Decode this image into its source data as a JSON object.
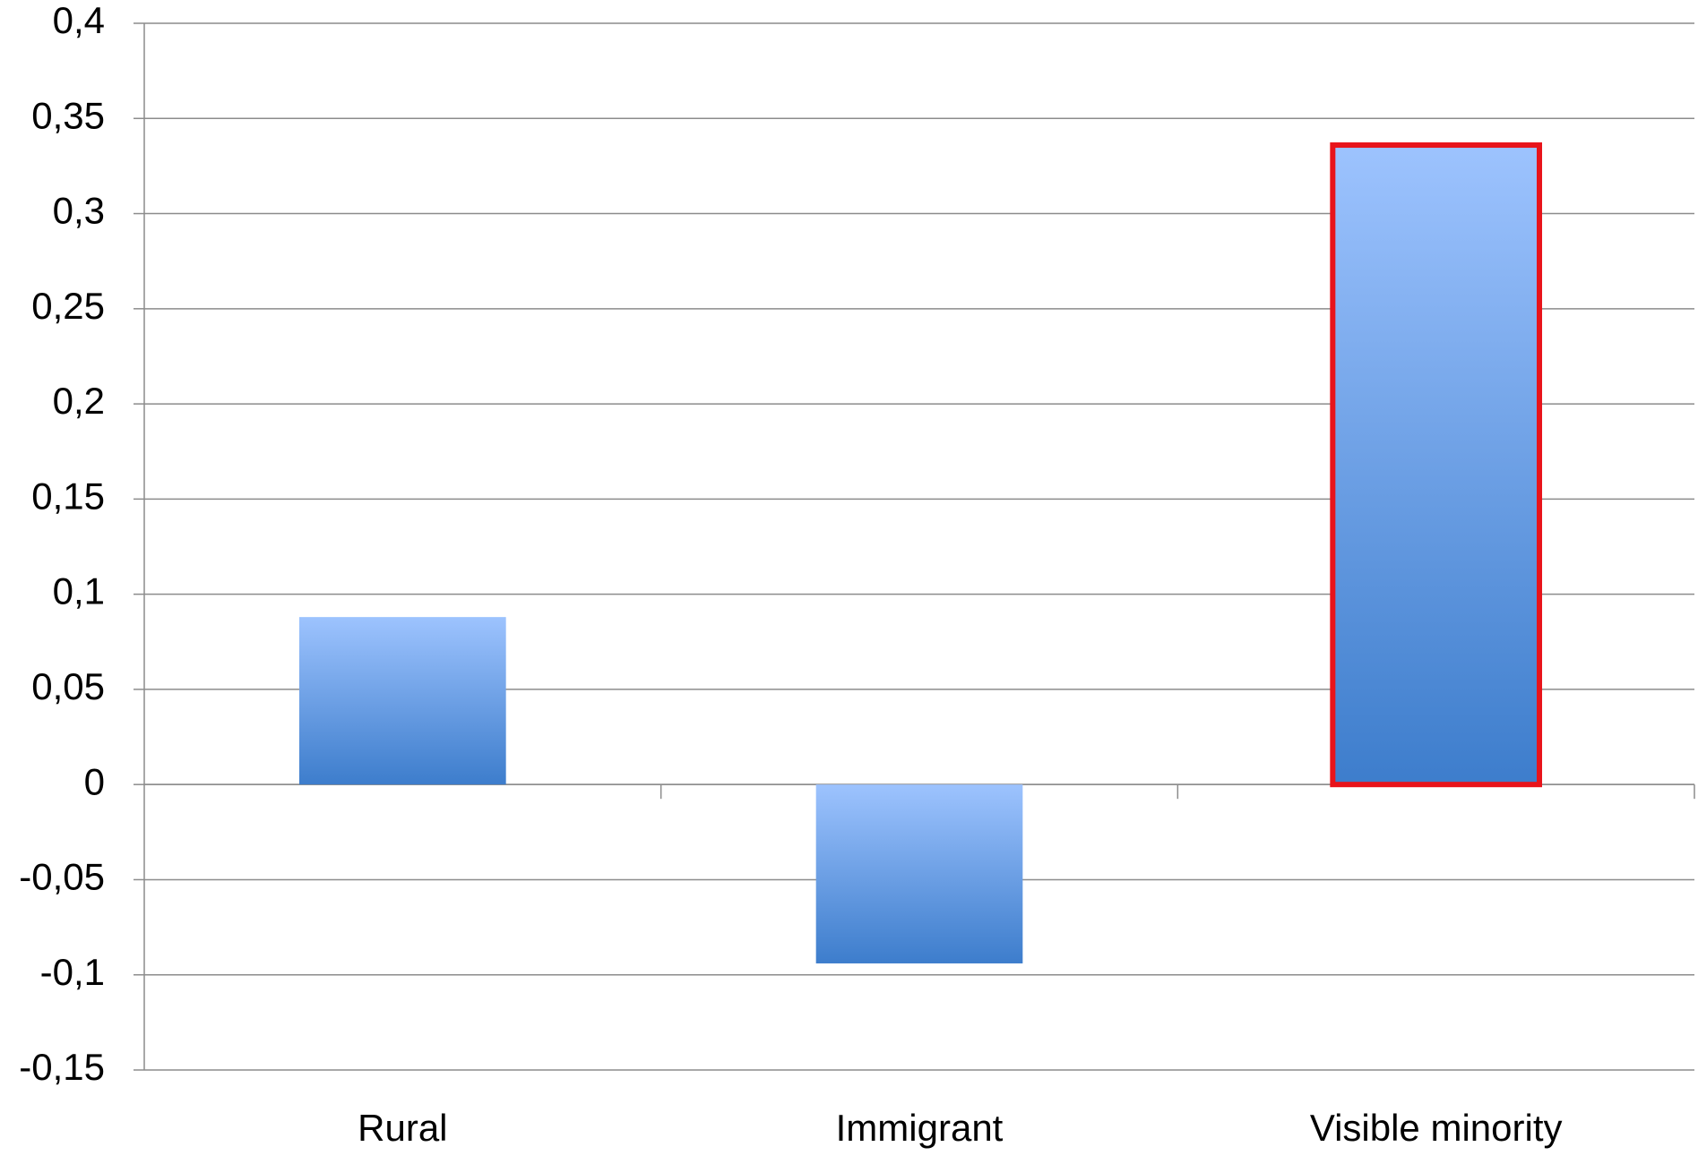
{
  "chart_data": {
    "type": "bar",
    "categories": [
      "Rural",
      "Immigrant",
      "Visible minority"
    ],
    "values": [
      0.088,
      -0.094,
      0.336
    ],
    "gradient": [
      "#9dc3fe",
      "#3d7dcc"
    ],
    "edge_colors": [
      null,
      null,
      "#e8141b"
    ],
    "ylim": [
      -0.15,
      0.4
    ],
    "yticks": [
      {
        "value": -0.15,
        "label": "-0,15"
      },
      {
        "value": -0.1,
        "label": "-0,1"
      },
      {
        "value": -0.05,
        "label": "-0,05"
      },
      0,
      {
        "value": 0.05,
        "label": "0,05"
      },
      {
        "value": 0.1,
        "label": "0,1"
      },
      {
        "value": 0.15,
        "label": "0,15"
      },
      {
        "value": 0.2,
        "label": "0,2"
      },
      {
        "value": 0.25,
        "label": "0,25"
      },
      {
        "value": 0.3,
        "label": "0,3"
      },
      {
        "value": 0.35,
        "label": "0,35"
      },
      {
        "value": 0.4,
        "label": "0,4"
      }
    ],
    "grid": true
  }
}
